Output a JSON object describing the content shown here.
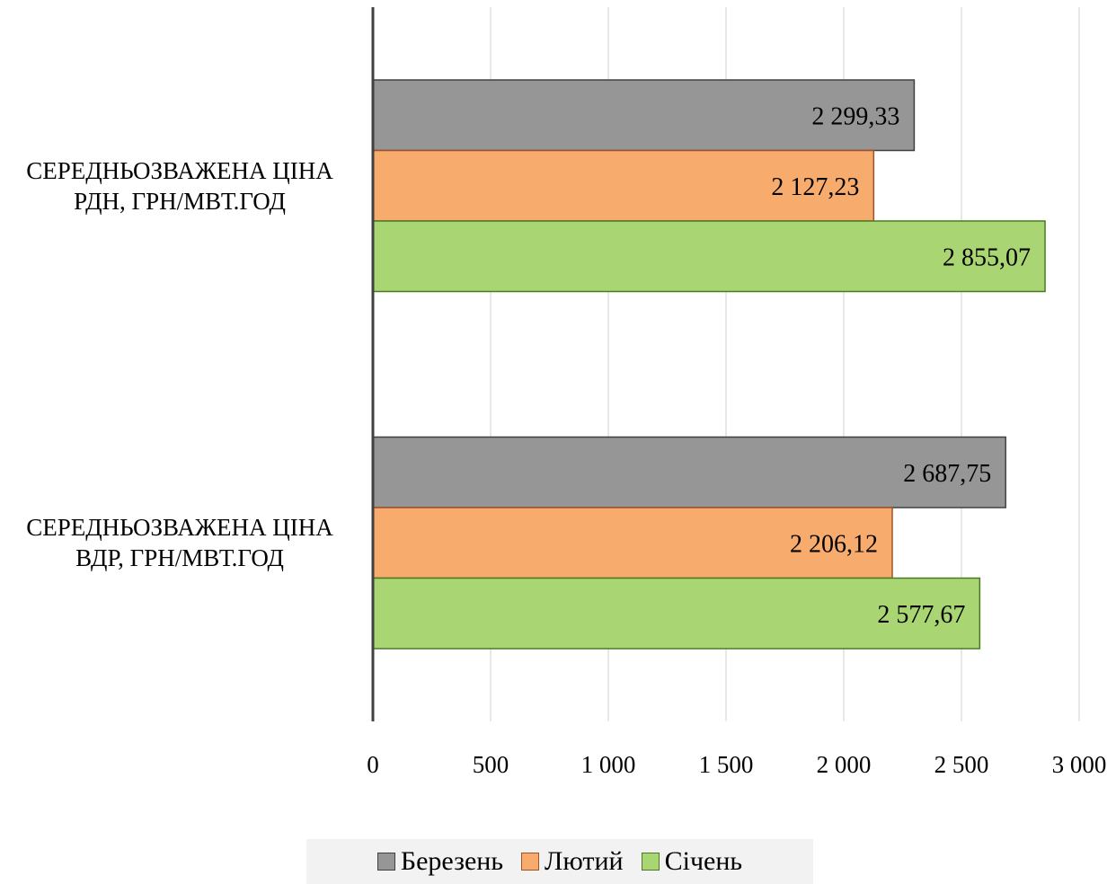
{
  "chart_data": {
    "type": "bar",
    "orientation": "horizontal",
    "categories": [
      "Середньозважена ціна РДН, грн/МВт.год",
      "Середньозважена ціна ВДР, грн/МВт.год"
    ],
    "series": [
      {
        "name": "Березень",
        "values": [
          2299.33,
          2687.75
        ],
        "labels": [
          "2 299,33",
          "2 687,75"
        ],
        "color": "#969696",
        "stroke": "#404040"
      },
      {
        "name": "Лютий",
        "values": [
          2127.23,
          2206.12
        ],
        "labels": [
          "2 127,23",
          "2 206,12"
        ],
        "color": "#f7ab6d",
        "stroke": "#a0522d"
      },
      {
        "name": "Січень",
        "values": [
          2855.07,
          2577.67
        ],
        "labels": [
          "2 855,07",
          "2 577,67"
        ],
        "color": "#a9d672",
        "stroke": "#4a7a25"
      }
    ],
    "xlim": [
      0,
      3000
    ],
    "xticks": [
      0,
      500,
      1000,
      1500,
      2000,
      2500,
      3000
    ],
    "xtick_labels": [
      "0",
      "500",
      "1 000",
      "1 500",
      "2 000",
      "2 500",
      "3 000"
    ],
    "grid": true,
    "legend_position": "bottom"
  }
}
